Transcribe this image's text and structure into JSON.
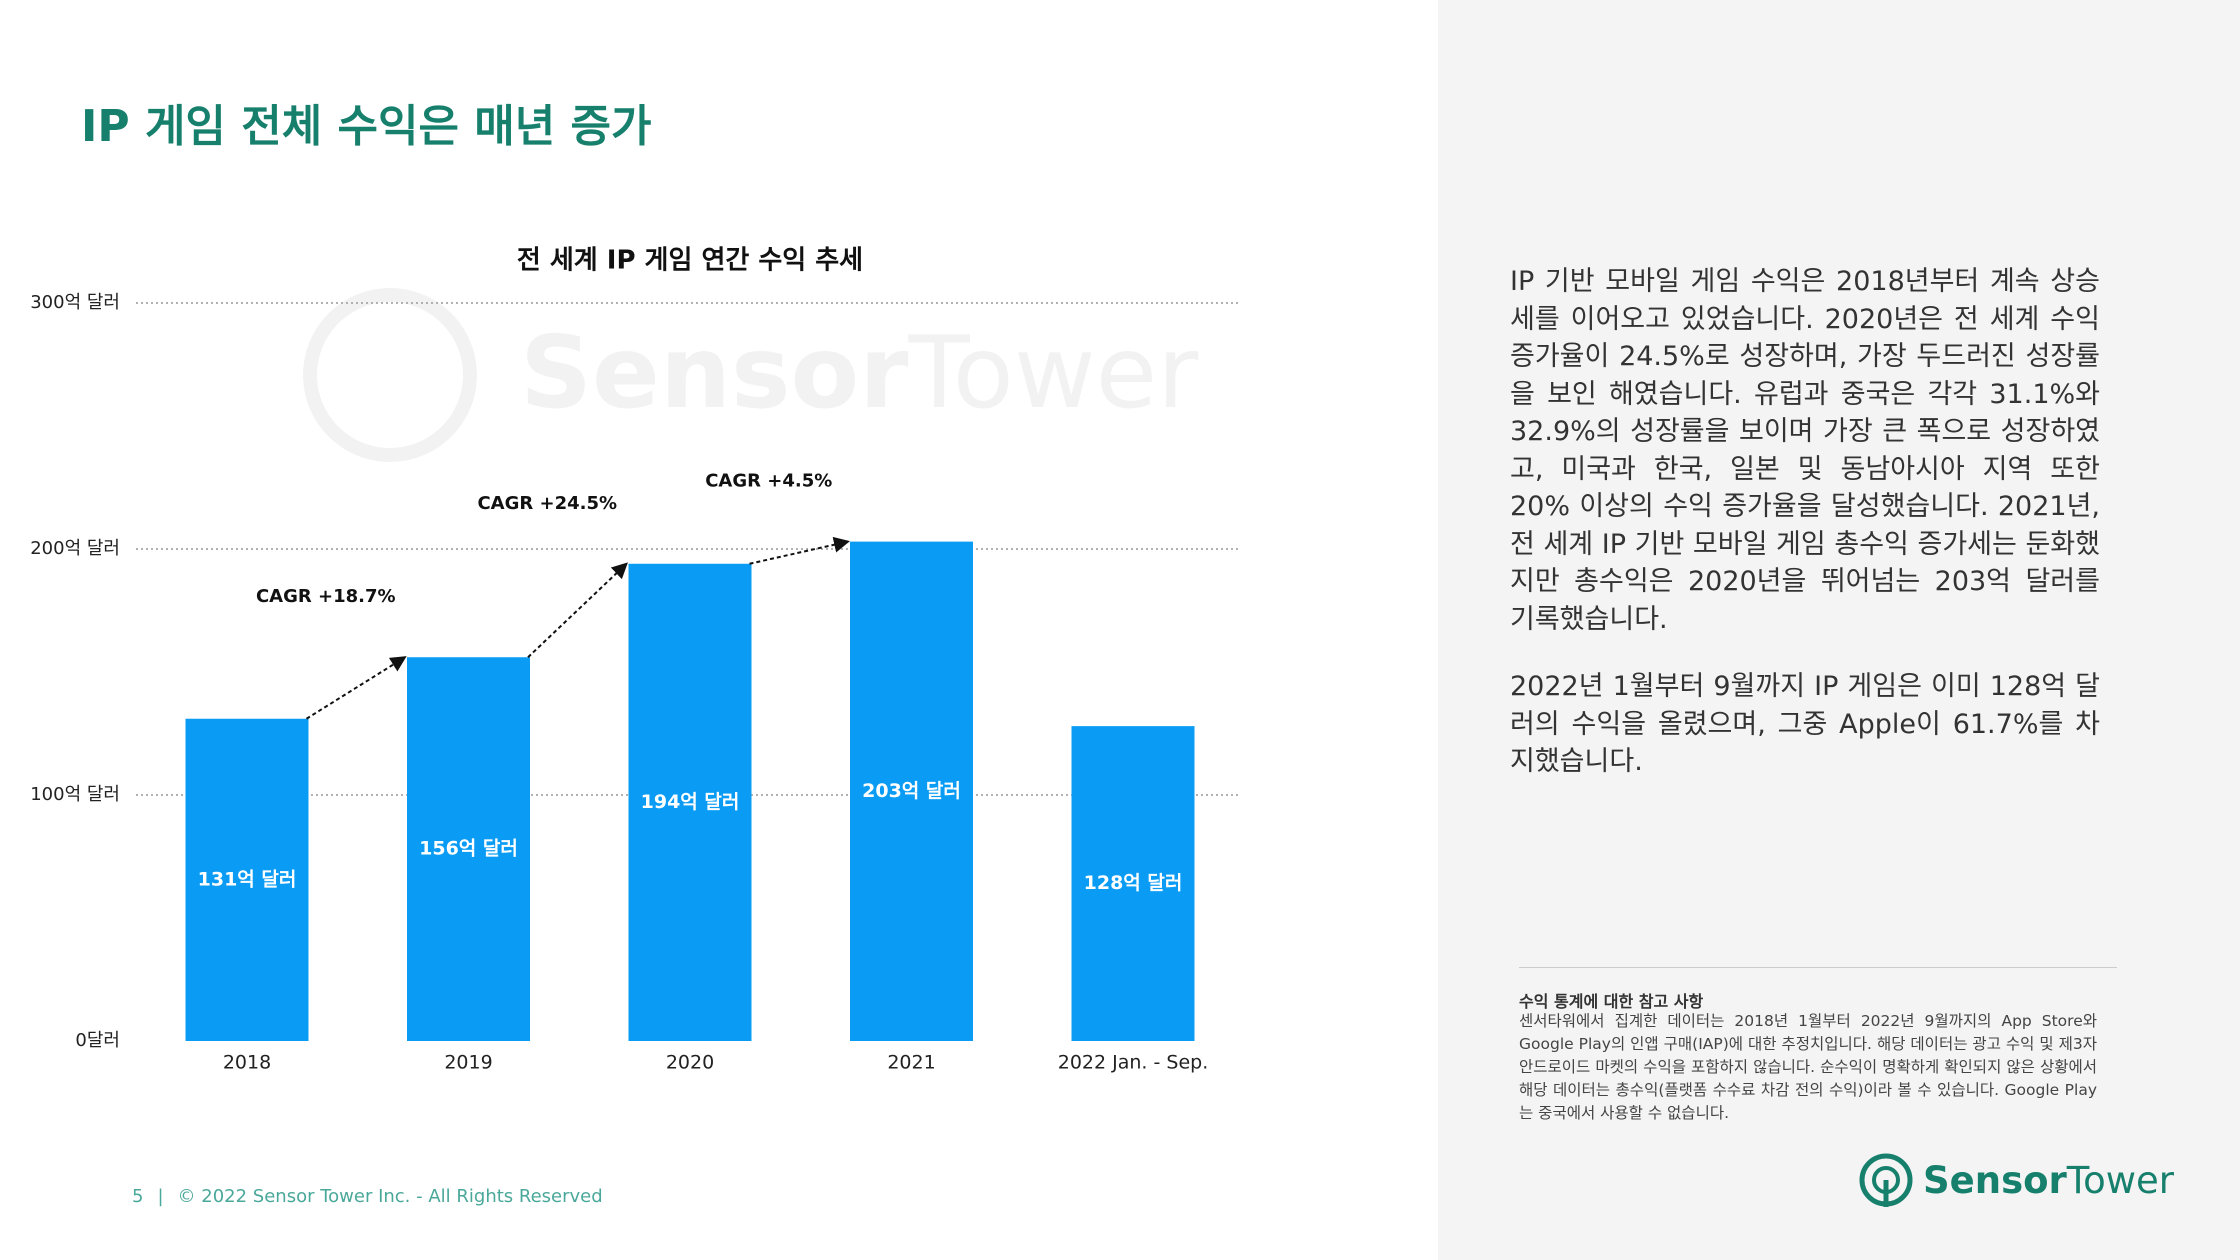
{
  "header": {
    "title": "IP 게임 전체 수익은 매년 증가"
  },
  "chart_data": {
    "type": "bar",
    "title": "전 세계 IP 게임 연간 수익 추세",
    "categories": [
      "2018",
      "2019",
      "2020",
      "2021",
      "2022 Jan. - Sep."
    ],
    "values": [
      131,
      156,
      194,
      203,
      128
    ],
    "value_labels": [
      "131억 달러",
      "156억 달러",
      "194억 달러",
      "203억 달러",
      "128억 달러"
    ],
    "color": "#0a9cf5",
    "ylim": [
      0,
      300
    ],
    "yticks": [
      {
        "value": 0,
        "label": "0달러"
      },
      {
        "value": 100,
        "label": "100억 달러"
      },
      {
        "value": 200,
        "label": "200억 달러"
      },
      {
        "value": 300,
        "label": "300억 달러"
      }
    ],
    "grid": true,
    "annotations": [
      "CAGR +18.7%",
      "CAGR +24.5%",
      "CAGR +4.5%"
    ]
  },
  "side_text": {
    "paragraphs": [
      "IP 기반 모바일 게임 수익은 2018년부터 계속 상승세를 이어오고 있었습니다. 2020년은 전 세계 수익 증가율이 24.5%로 성장하며, 가장 두드러진 성장률을 보인 해였습니다. 유럽과 중국은 각각 31.1%와 32.9%의 성장률을 보이며 가장 큰 폭으로 성장하였고, 미국과 한국, 일본 및 동남아시아 지역 또한 20% 이상의 수익 증가율을 달성했습니다. 2021년, 전 세계 IP 기반 모바일 게임 총수익 증가세는 둔화했지만 총수익은 2020년을 뛰어넘는 203억 달러를 기록했습니다.",
      "2022년 1월부터 9월까지 IP 게임은 이미 128억 달러의 수익을 올렸으며, 그중 Apple이 61.7%를 차지했습니다."
    ]
  },
  "footnote": {
    "title": "수익 통계에 대한 참고 사항",
    "body": "센서타워에서 집계한 데이터는 2018년 1월부터 2022년 9월까지의 App Store와 Google Play의 인앱 구매(IAP)에 대한 추정치입니다. 해당 데이터는 광고 수익 및 제3자 안드로이드 마켓의 수익을 포함하지 않습니다. 순수익이 명확하게 확인되지 않은 상황에서 해당 데이터는 총수익(플랫폼 수수료 차감 전의 수익)이라 볼 수 있습니다. Google Play는 중국에서 사용할 수 없습니다."
  },
  "footer": {
    "page": "5",
    "separator": "|",
    "copyright": "© 2022 Sensor Tower Inc. - All Rights Reserved"
  },
  "logo": {
    "part1": "Sensor",
    "part2": "Tower"
  }
}
